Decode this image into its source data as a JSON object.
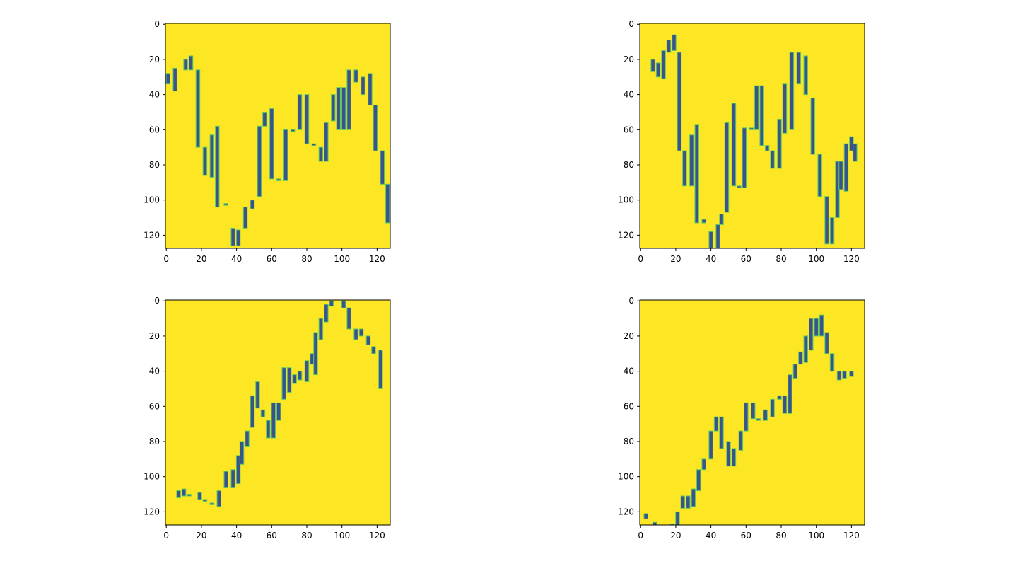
{
  "chart_data": [
    {
      "type": "candlestick",
      "background": "#fde725",
      "color": "#3b528b",
      "edge_color": "#5ec962",
      "xlim": [
        -0.5,
        127.5
      ],
      "ylim": [
        127.5,
        -0.5
      ],
      "xticks": [
        0,
        20,
        40,
        60,
        80,
        100,
        120
      ],
      "yticks": [
        0,
        20,
        40,
        60,
        80,
        100,
        120
      ],
      "x": [
        1,
        5,
        11,
        14,
        18,
        22,
        26,
        29,
        34,
        38,
        41,
        45,
        49,
        53,
        56,
        60,
        64,
        68,
        72,
        76,
        80,
        84,
        88,
        91,
        95,
        98,
        101,
        104,
        108,
        112,
        116,
        119,
        123,
        126
      ],
      "body_top": [
        28,
        25,
        20,
        18,
        26,
        70,
        63,
        58,
        102,
        116,
        117,
        104,
        100,
        58,
        50,
        48,
        88,
        60,
        60,
        40,
        40,
        68,
        70,
        56,
        40,
        36,
        36,
        26,
        26,
        30,
        28,
        46,
        72,
        91
      ],
      "body_bottom": [
        34,
        38,
        26,
        26,
        70,
        86,
        87,
        104,
        103,
        126,
        126,
        116,
        105,
        98,
        58,
        88,
        89,
        89,
        61,
        60,
        68,
        69,
        78,
        78,
        55,
        60,
        60,
        60,
        33,
        40,
        46,
        72,
        91,
        113
      ]
    },
    {
      "type": "candlestick",
      "background": "#fde725",
      "color": "#3b528b",
      "edge_color": "#5ec962",
      "xlim": [
        -0.5,
        127.5
      ],
      "ylim": [
        127.5,
        -0.5
      ],
      "xticks": [
        0,
        20,
        40,
        60,
        80,
        100,
        120
      ],
      "yticks": [
        0,
        20,
        40,
        60,
        80,
        100,
        120
      ],
      "x": [
        7,
        10,
        13,
        16,
        19,
        22,
        25,
        29,
        32,
        36,
        40,
        44,
        46,
        49,
        53,
        56,
        59,
        63,
        66,
        69,
        72,
        75,
        79,
        82,
        86,
        90,
        94,
        98,
        102,
        106,
        109,
        112,
        114,
        117,
        120,
        122
      ],
      "body_top": [
        20,
        22,
        15,
        9,
        6,
        16,
        72,
        63,
        57,
        111,
        118,
        114,
        108,
        56,
        45,
        92,
        59,
        59,
        35,
        35,
        69,
        72,
        54,
        34,
        16,
        16,
        18,
        42,
        74,
        98,
        110,
        78,
        78,
        68,
        64,
        68
      ],
      "body_bottom": [
        27,
        30,
        31,
        16,
        15,
        72,
        92,
        92,
        113,
        113,
        128,
        128,
        114,
        107,
        92,
        93,
        93,
        60,
        60,
        69,
        72,
        82,
        82,
        62,
        60,
        34,
        40,
        74,
        98,
        125,
        125,
        110,
        94,
        95,
        72,
        78
      ]
    },
    {
      "type": "candlestick",
      "background": "#fde725",
      "color": "#3b528b",
      "edge_color": "#5ec962",
      "xlim": [
        -0.5,
        127.5
      ],
      "ylim": [
        127.5,
        -0.5
      ],
      "xticks": [
        0,
        20,
        40,
        60,
        80,
        100,
        120
      ],
      "yticks": [
        0,
        20,
        40,
        60,
        80,
        100,
        120
      ],
      "x": [
        7,
        10,
        13,
        19,
        22,
        26,
        30,
        34,
        38,
        41,
        43,
        46,
        49,
        52,
        55,
        58,
        61,
        64,
        67,
        70,
        73,
        76,
        80,
        83,
        85,
        88,
        91,
        94,
        101,
        104,
        108,
        111,
        115,
        118,
        122
      ],
      "body_top": [
        108,
        107,
        110,
        109,
        113,
        115,
        108,
        97,
        96,
        88,
        80,
        74,
        54,
        46,
        62,
        68,
        58,
        58,
        38,
        38,
        42,
        40,
        34,
        30,
        18,
        10,
        2,
        0,
        0,
        4,
        16,
        16,
        20,
        26,
        28
      ],
      "body_bottom": [
        112,
        111,
        111,
        113,
        114,
        116,
        117,
        106,
        106,
        104,
        93,
        83,
        72,
        61,
        66,
        78,
        78,
        68,
        56,
        52,
        47,
        45,
        46,
        36,
        42,
        22,
        12,
        3,
        4,
        16,
        22,
        20,
        25,
        30,
        50
      ]
    },
    {
      "type": "candlestick",
      "background": "#fde725",
      "color": "#3b528b",
      "edge_color": "#5ec962",
      "xlim": [
        -0.5,
        127.5
      ],
      "ylim": [
        127.5,
        -0.5
      ],
      "xticks": [
        0,
        20,
        40,
        60,
        80,
        100,
        120
      ],
      "yticks": [
        0,
        20,
        40,
        60,
        80,
        100,
        120
      ],
      "x": [
        3,
        8,
        18,
        21,
        24,
        27,
        30,
        33,
        36,
        40,
        43,
        46,
        50,
        53,
        57,
        60,
        64,
        67,
        71,
        75,
        79,
        82,
        85,
        88,
        91,
        94,
        97,
        100,
        103,
        106,
        109,
        113,
        116,
        120
      ],
      "body_top": [
        121,
        126,
        127,
        120,
        111,
        111,
        107,
        96,
        90,
        74,
        66,
        66,
        80,
        84,
        74,
        58,
        58,
        67,
        62,
        56,
        54,
        54,
        42,
        36,
        29,
        20,
        10,
        10,
        8,
        18,
        30,
        40,
        40,
        40
      ],
      "body_bottom": [
        124,
        128,
        128,
        128,
        118,
        118,
        117,
        108,
        96,
        90,
        74,
        84,
        94,
        94,
        85,
        74,
        67,
        68,
        68,
        66,
        56,
        64,
        64,
        44,
        36,
        35,
        28,
        20,
        20,
        30,
        40,
        45,
        44,
        43
      ]
    }
  ]
}
